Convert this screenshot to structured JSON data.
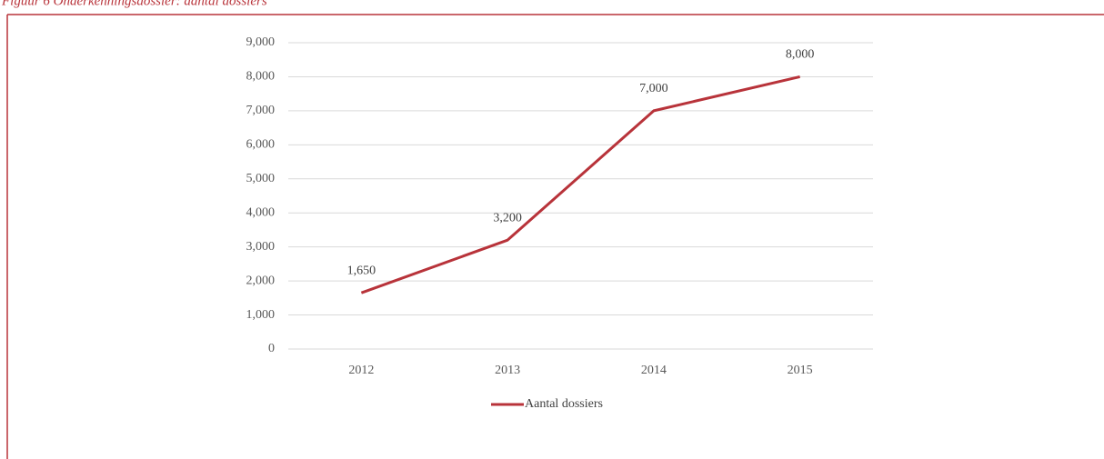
{
  "chart_data": {
    "type": "line",
    "title": "Figuur 6 Onderkenningsdossier: aantal dossiers",
    "categories": [
      "2012",
      "2013",
      "2014",
      "2015"
    ],
    "series": [
      {
        "name": "Aantal dossiers",
        "color": "#b8333a",
        "values": [
          1650,
          3200,
          7000,
          8000
        ],
        "value_labels": [
          "1,650",
          "3,200",
          "7,000",
          "8,000"
        ]
      }
    ],
    "ylim": [
      0,
      9000
    ],
    "yticks": [
      0,
      {
        "value": 1000,
        "label": "1,000"
      },
      {
        "value": 2000,
        "label": "2,000"
      },
      {
        "value": 3000,
        "label": "3,000"
      },
      {
        "value": 4000,
        "label": "4,000"
      },
      {
        "value": 5000,
        "label": "5,000"
      },
      {
        "value": 6000,
        "label": "6,000"
      },
      {
        "value": 7000,
        "label": "7,000"
      },
      {
        "value": 8000,
        "label": "8,000"
      },
      {
        "value": 9000,
        "label": "9,000"
      }
    ],
    "grid": true,
    "legend": "bottom"
  }
}
